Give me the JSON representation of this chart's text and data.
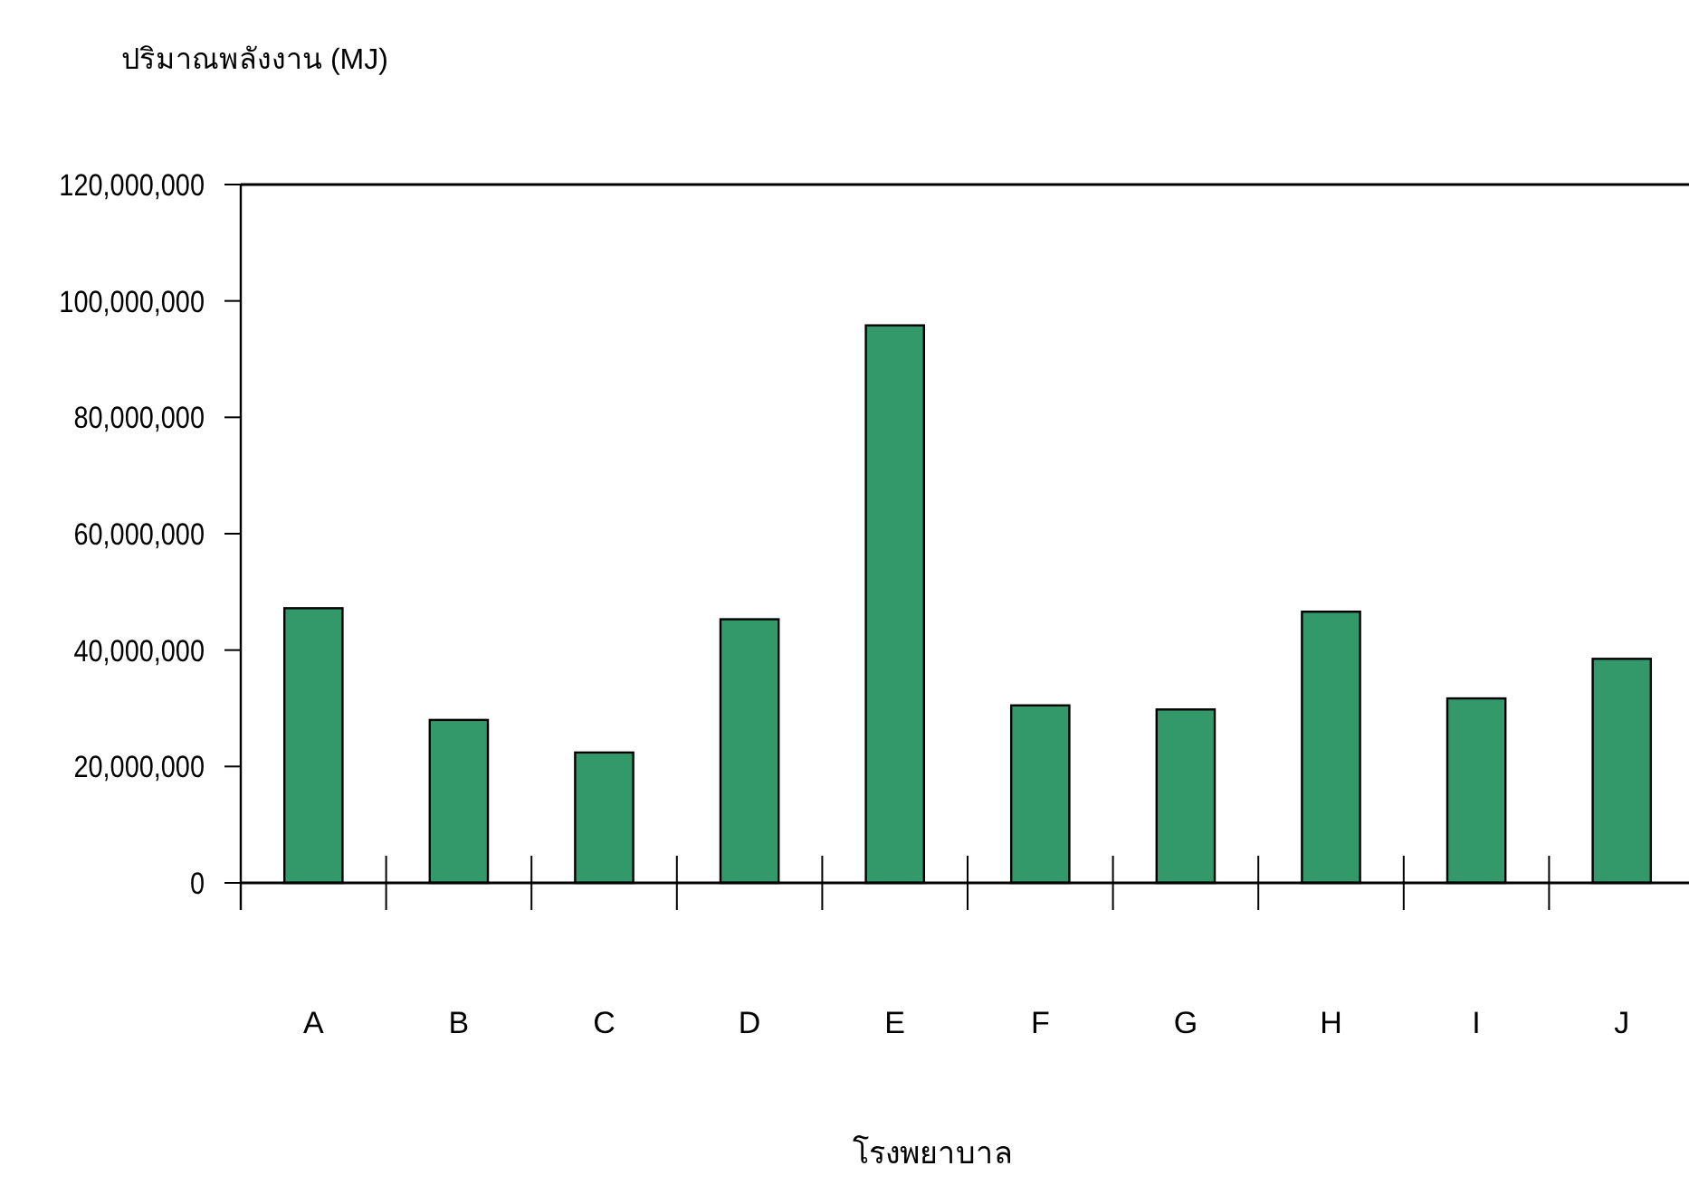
{
  "chart_data": {
    "type": "bar",
    "xlabel": "โรงพยาบาล",
    "ylabel": "ปริมาณพลังงาน (MJ)",
    "categories": [
      "A",
      "B",
      "C",
      "D",
      "E",
      "F",
      "G",
      "H",
      "I",
      "J"
    ],
    "values": [
      47200000,
      28000000,
      22400000,
      45300000,
      95800000,
      30500000,
      29800000,
      46600000,
      31700000,
      38500000
    ],
    "color": "#33996a",
    "ylim": [
      0,
      120000000
    ],
    "yticks": [
      {
        "value": 0,
        "label": "0"
      },
      {
        "value": 20000000,
        "label": "20,000,000"
      },
      {
        "value": 40000000,
        "label": "40,000,000"
      },
      {
        "value": 60000000,
        "label": "60,000,000"
      },
      {
        "value": 80000000,
        "label": "80,000,000"
      },
      {
        "value": 100000000,
        "label": "100,000,000"
      },
      {
        "value": 120000000,
        "label": "120,000,000"
      }
    ]
  }
}
